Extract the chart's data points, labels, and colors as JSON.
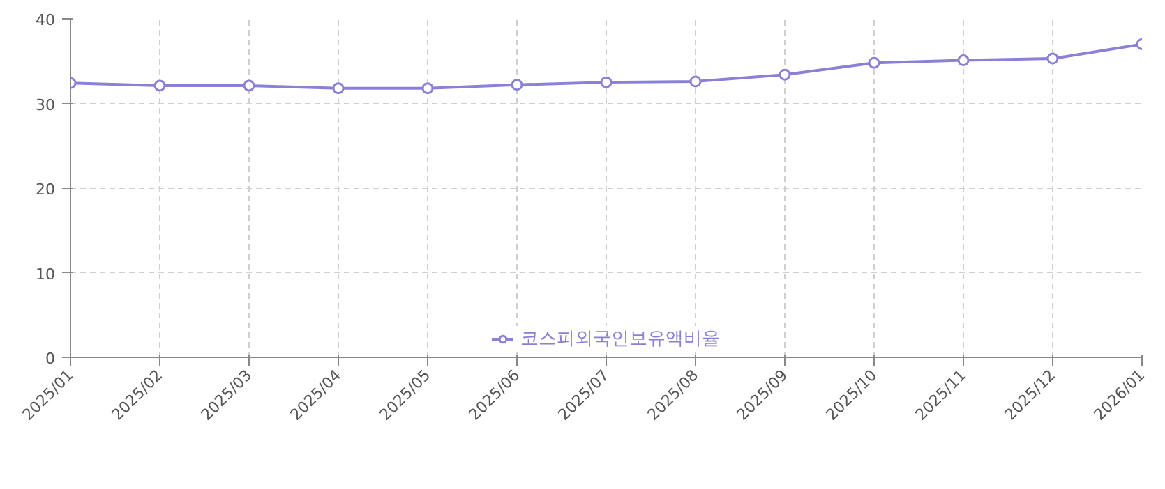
{
  "chart_data": {
    "type": "line",
    "categories": [
      "2025/01",
      "2025/02",
      "2025/03",
      "2025/04",
      "2025/05",
      "2025/06",
      "2025/07",
      "2025/08",
      "2025/09",
      "2025/10",
      "2025/11",
      "2025/12",
      "2026/01"
    ],
    "series": [
      {
        "name": "코스피외국인보유액비율",
        "color": "#8a80d8",
        "values": [
          32.4,
          32.1,
          32.1,
          31.8,
          31.8,
          32.2,
          32.5,
          32.6,
          33.4,
          34.8,
          35.1,
          35.3,
          37.0
        ]
      }
    ],
    "ylim": [
      0,
      40
    ],
    "yticks": [
      0,
      10,
      20,
      30,
      40
    ],
    "grid": true,
    "legend": "bottom",
    "marker": "circle",
    "line_style": "solid"
  }
}
